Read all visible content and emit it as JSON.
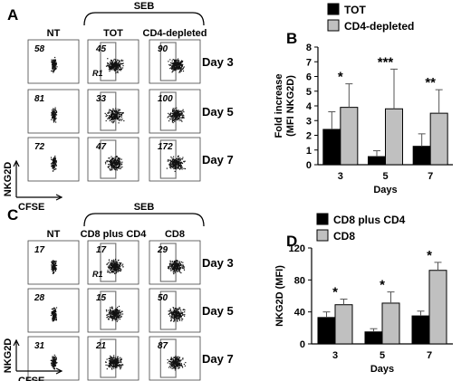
{
  "panels": {
    "A": {
      "letter": "A",
      "seb_label": "SEB",
      "columns": [
        "NT",
        "TOT",
        "CD4-depleted"
      ],
      "days": [
        "Day 3",
        "Day 5",
        "Day 7"
      ],
      "values": [
        [
          "58",
          "45",
          "90"
        ],
        [
          "81",
          "33",
          "100"
        ],
        [
          "72",
          "47",
          "172"
        ]
      ],
      "r1_label": "R1",
      "y_axis": "NKG2D",
      "x_axis": "CFSE"
    },
    "C": {
      "letter": "C",
      "seb_label": "SEB",
      "columns": [
        "NT",
        "CD8 plus CD4",
        "CD8"
      ],
      "days": [
        "Day 3",
        "Day 5",
        "Day 7"
      ],
      "values": [
        [
          "17",
          "17",
          "29"
        ],
        [
          "28",
          "15",
          "50"
        ],
        [
          "31",
          "21",
          "87"
        ]
      ],
      "r1_label": "R1",
      "y_axis": "NKG2D",
      "x_axis": "CFSE"
    }
  },
  "chart_data": [
    {
      "panel": "B",
      "type": "bar",
      "categories": [
        "3",
        "5",
        "7"
      ],
      "series": [
        {
          "name": "TOT",
          "color": "#000000",
          "values": [
            2.4,
            0.55,
            1.25
          ],
          "errors": [
            1.2,
            0.4,
            0.85
          ]
        },
        {
          "name": "CD4-depleted",
          "color": "#c0c0c0",
          "values": [
            3.9,
            3.8,
            3.5
          ],
          "errors": [
            1.6,
            2.7,
            1.6
          ]
        }
      ],
      "xlabel": "Days",
      "ylabel": "Fold increase (MFI NKG2D)",
      "ylabel_lines": [
        "Fold increase",
        "(MFI NKG2D)"
      ],
      "ylim": [
        0,
        8
      ],
      "yticks": [
        "0",
        "1",
        "2",
        "3",
        "4",
        "5",
        "6",
        "7",
        "8"
      ],
      "significance": [
        "*",
        "***",
        "**"
      ],
      "legend_position": "top-left"
    },
    {
      "panel": "D",
      "type": "bar",
      "categories": [
        "3",
        "5",
        "7"
      ],
      "series": [
        {
          "name": "CD8 plus CD4",
          "color": "#000000",
          "values": [
            33,
            15,
            35
          ],
          "errors": [
            7,
            4,
            6
          ]
        },
        {
          "name": "CD8",
          "color": "#c0c0c0",
          "values": [
            49,
            51,
            92
          ],
          "errors": [
            7,
            14,
            10
          ]
        }
      ],
      "xlabel": "Days",
      "ylabel": "NKG2D (MFI)",
      "ylim": [
        0,
        120
      ],
      "yticks": [
        "0",
        "40",
        "80",
        "120"
      ],
      "significance": [
        "*",
        "*",
        "*"
      ],
      "legend_position": "top-left"
    }
  ]
}
